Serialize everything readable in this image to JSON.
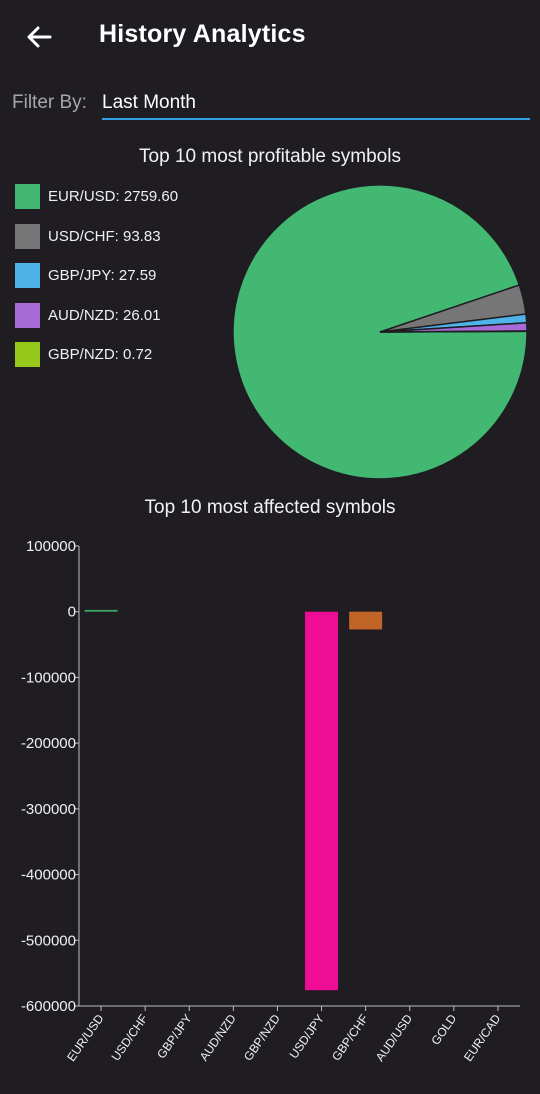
{
  "header": {
    "title": "History Analytics",
    "back_icon": "arrow-left-icon"
  },
  "filter": {
    "label": "Filter By:",
    "value": "Last Month"
  },
  "pie_chart": {
    "title": "Top 10 most profitable symbols",
    "legend": [
      {
        "label": "EUR/USD: 2759.60",
        "color": "#43b872"
      },
      {
        "label": "USD/CHF: 93.83",
        "color": "#767676"
      },
      {
        "label": "GBP/JPY: 27.59",
        "color": "#4db3e8"
      },
      {
        "label": "AUD/NZD: 26.01",
        "color": "#a66bd6"
      },
      {
        "label": "GBP/NZD: 0.72",
        "color": "#95c81b"
      }
    ]
  },
  "bar_chart": {
    "title": "Top 10 most affected symbols",
    "bar_colors": {
      "EUR/USD": "#3aa565",
      "USD/JPY": "#ee0d94",
      "GBP/CHF": "#c06527"
    }
  },
  "chart_data": [
    {
      "type": "pie",
      "title": "Top 10 most profitable symbols",
      "categories": [
        "EUR/USD",
        "USD/CHF",
        "GBP/JPY",
        "AUD/NZD",
        "GBP/NZD"
      ],
      "values": [
        2759.6,
        93.83,
        27.59,
        26.01,
        0.72
      ],
      "colors": [
        "#43b872",
        "#767676",
        "#4db3e8",
        "#a66bd6",
        "#95c81b"
      ],
      "legend": "left"
    },
    {
      "type": "bar",
      "title": "Top 10 most affected symbols",
      "categories": [
        "EUR/USD",
        "USD/CHF",
        "GBP/JPY",
        "AUD/NZD",
        "GBP/NZD",
        "USD/JPY",
        "GBP/CHF",
        "AUD/USD",
        "GOLD",
        "EUR/CAD"
      ],
      "values": [
        2759.6,
        0,
        0,
        0,
        0,
        -576000,
        -27000,
        0,
        0,
        0
      ],
      "ylim": [
        -600000,
        100000
      ],
      "yticks": [
        100000,
        0,
        -100000,
        -200000,
        -300000,
        -400000,
        -500000,
        -600000
      ],
      "grid": false
    }
  ]
}
